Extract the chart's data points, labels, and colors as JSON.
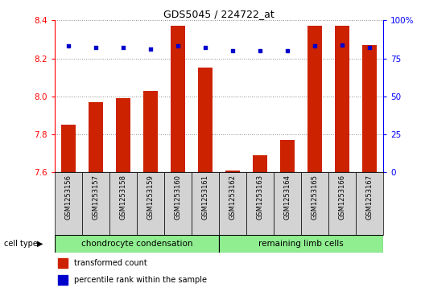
{
  "title": "GDS5045 / 224722_at",
  "samples": [
    "GSM1253156",
    "GSM1253157",
    "GSM1253158",
    "GSM1253159",
    "GSM1253160",
    "GSM1253161",
    "GSM1253162",
    "GSM1253163",
    "GSM1253164",
    "GSM1253165",
    "GSM1253166",
    "GSM1253167"
  ],
  "transformed_count": [
    7.85,
    7.97,
    7.99,
    8.03,
    8.37,
    8.15,
    7.61,
    7.69,
    7.77,
    8.37,
    8.37,
    8.27
  ],
  "percentile_rank": [
    83,
    82,
    82,
    81,
    83,
    82,
    80,
    80,
    80,
    83,
    84,
    82
  ],
  "groups": [
    {
      "label": "chondrocyte condensation",
      "start": 0,
      "end": 6,
      "color": "#90EE90"
    },
    {
      "label": "remaining limb cells",
      "start": 6,
      "end": 12,
      "color": "#90EE90"
    }
  ],
  "ylim_left": [
    7.6,
    8.4
  ],
  "ylim_right": [
    0,
    100
  ],
  "yticks_left": [
    7.6,
    7.8,
    8.0,
    8.2,
    8.4
  ],
  "yticks_right": [
    0,
    25,
    50,
    75,
    100
  ],
  "bar_color": "#CC2200",
  "dot_color": "#0000CC",
  "grid_color": "#888888",
  "bg_color": "#D3D3D3",
  "green_color": "#90EE90",
  "cell_type_label": "cell type",
  "legend_items": [
    {
      "color": "#CC2200",
      "label": "transformed count"
    },
    {
      "color": "#0000CC",
      "label": "percentile rank within the sample"
    }
  ],
  "figure_width": 5.23,
  "figure_height": 3.63
}
